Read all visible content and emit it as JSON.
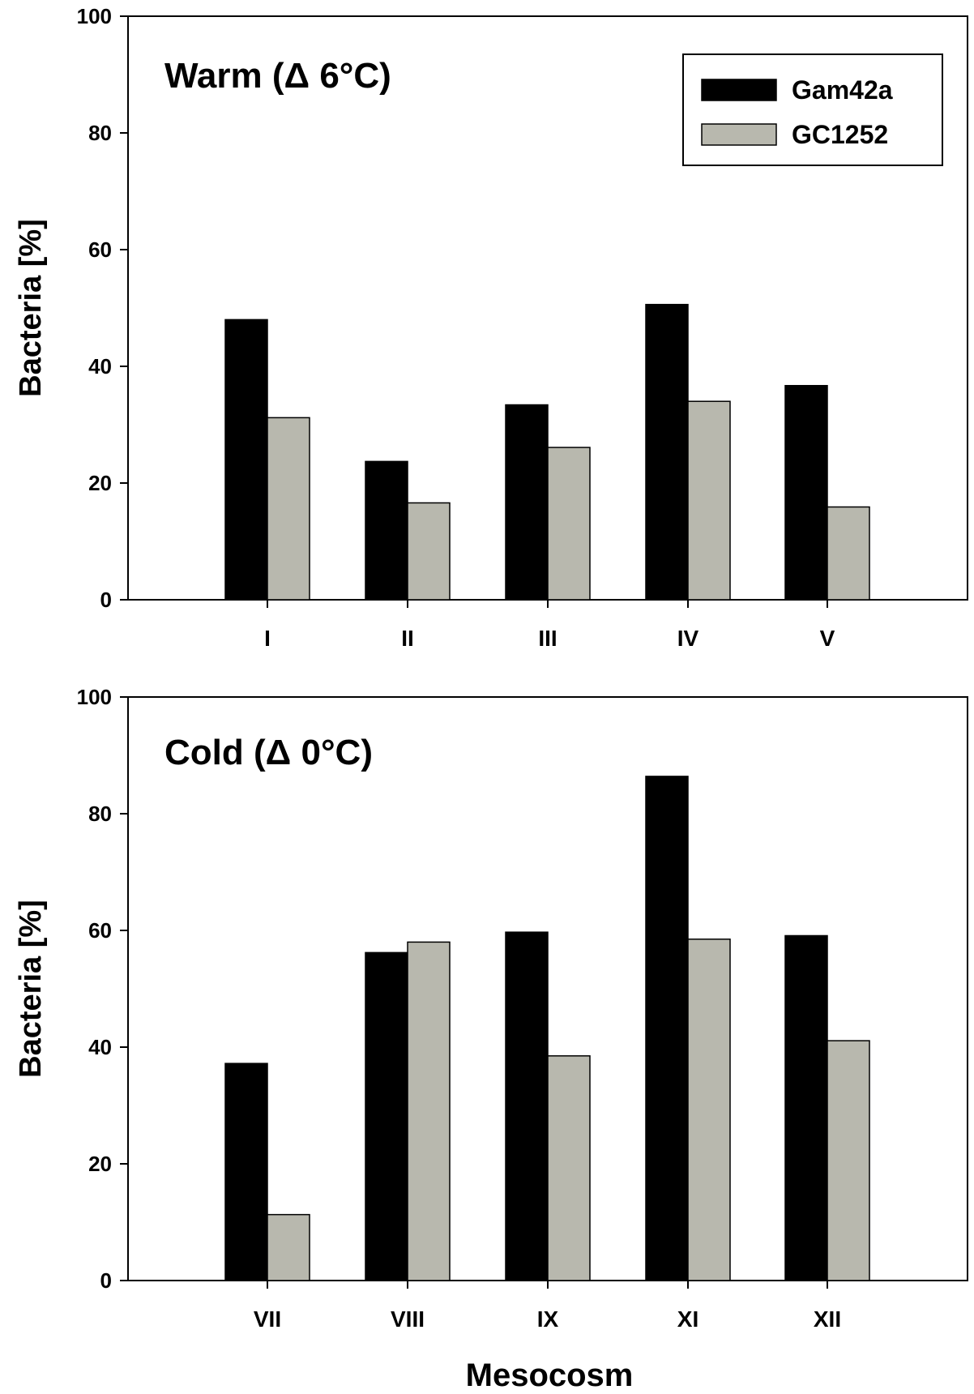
{
  "chart_data": [
    {
      "type": "bar",
      "title": "Warm (Δ 6°C)",
      "xlabel": "",
      "ylabel": "Bacteria [%]",
      "ylim": [
        0,
        100
      ],
      "yticks": [
        0,
        20,
        40,
        60,
        80,
        100
      ],
      "categories": [
        "I",
        "II",
        "III",
        "IV",
        "V"
      ],
      "series": [
        {
          "name": "Gam42a",
          "color": "#000000",
          "values": [
            48,
            23.7,
            33.4,
            50.6,
            36.7
          ]
        },
        {
          "name": "GC1252",
          "color": "#b8b8ae",
          "values": [
            31.2,
            16.6,
            26.1,
            34,
            15.9
          ]
        }
      ],
      "legend": "top-right",
      "grid": false
    },
    {
      "type": "bar",
      "title": "Cold (Δ 0°C)",
      "xlabel": "Mesocosm",
      "ylabel": "Bacteria [%]",
      "ylim": [
        0,
        100
      ],
      "yticks": [
        0,
        20,
        40,
        60,
        80,
        100
      ],
      "categories": [
        "VII",
        "VIII",
        "IX",
        "XI",
        "XII"
      ],
      "series": [
        {
          "name": "Gam42a",
          "color": "#000000",
          "values": [
            37.2,
            56.2,
            59.7,
            86.4,
            59.1
          ]
        },
        {
          "name": "GC1252",
          "color": "#b8b8ae",
          "values": [
            11.3,
            58,
            38.5,
            58.5,
            41.1
          ]
        }
      ],
      "legend": "none",
      "grid": false
    }
  ]
}
